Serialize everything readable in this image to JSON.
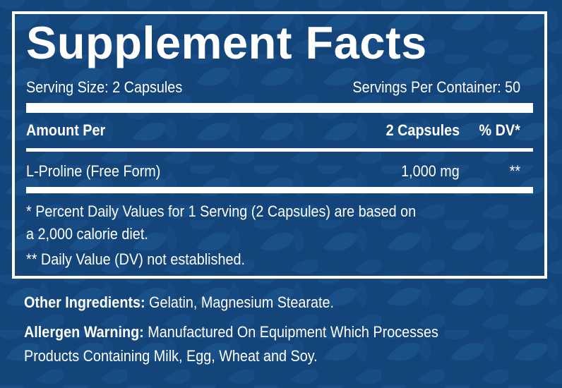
{
  "colors": {
    "background": "#13447a",
    "text": "#ffffff",
    "leaf_pattern": "#1a5088"
  },
  "panel": {
    "title": "Supplement Facts",
    "serving_size": "Serving Size: 2 Capsules",
    "servings_per_container": "Servings Per Container: 50",
    "header": {
      "amount_per": "Amount Per",
      "serving": "2 Capsules",
      "dv": "% DV*"
    },
    "ingredients": [
      {
        "name": "L-Proline (Free Form)",
        "amount": "1,000 mg",
        "dv": "**"
      }
    ],
    "footnotes": [
      "* Percent Daily Values for 1 Serving (2 Capsules) are based on",
      "a 2,000 calorie diet.",
      "** Daily Value (DV) not established."
    ]
  },
  "other_ingredients": {
    "label": "Other Ingredients:",
    "text": " Gelatin, Magnesium Stearate."
  },
  "allergen_warning": {
    "label": "Allergen Warning:",
    "text_line1": " Manufactured On Equipment Which Processes",
    "text_line2": "Products Containing Milk, Egg, Wheat and Soy."
  }
}
